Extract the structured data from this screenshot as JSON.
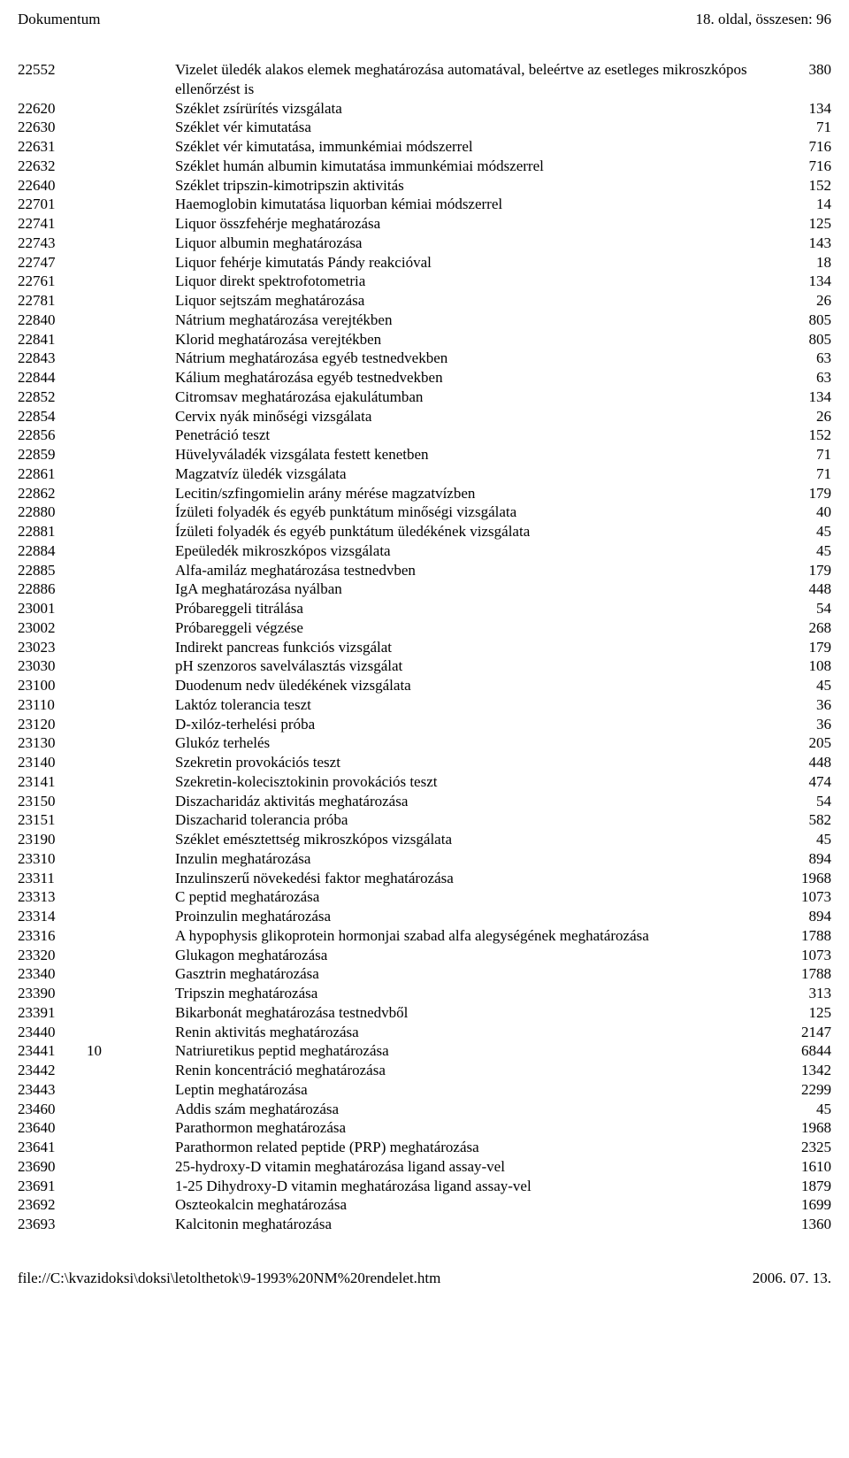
{
  "header": {
    "left": "Dokumentum",
    "right": "18. oldal, összesen: 96"
  },
  "footer": {
    "left": "file://C:\\kvazidoksi\\doksi\\letolthetok\\9-1993%20NM%20rendelet.htm",
    "right": "2006. 07. 13."
  },
  "rows": [
    {
      "code": "22552",
      "mid": "",
      "desc": "Vizelet üledék alakos elemek meghatározása automatával, beleértve az esetleges mikroszkópos ellenőrzést is",
      "val": "380"
    },
    {
      "code": "22620",
      "mid": "",
      "desc": "Széklet zsírürítés vizsgálata",
      "val": "134"
    },
    {
      "code": "22630",
      "mid": "",
      "desc": "Széklet vér kimutatása",
      "val": "71"
    },
    {
      "code": "22631",
      "mid": "",
      "desc": "Széklet vér kimutatása, immunkémiai módszerrel",
      "val": "716"
    },
    {
      "code": "22632",
      "mid": "",
      "desc": "Széklet humán albumin kimutatása immunkémiai módszerrel",
      "val": "716"
    },
    {
      "code": "22640",
      "mid": "",
      "desc": "Széklet tripszin-kimotripszin aktivitás",
      "val": "152"
    },
    {
      "code": "22701",
      "mid": "",
      "desc": "Haemoglobin kimutatása liquorban kémiai módszerrel",
      "val": "14"
    },
    {
      "code": "22741",
      "mid": "",
      "desc": "Liquor összfehérje meghatározása",
      "val": "125"
    },
    {
      "code": "22743",
      "mid": "",
      "desc": "Liquor albumin meghatározása",
      "val": "143"
    },
    {
      "code": "22747",
      "mid": "",
      "desc": "Liquor fehérje kimutatás Pándy reakcióval",
      "val": "18"
    },
    {
      "code": "22761",
      "mid": "",
      "desc": "Liquor direkt spektrofotometria",
      "val": "134"
    },
    {
      "code": "22781",
      "mid": "",
      "desc": "Liquor sejtszám meghatározása",
      "val": "26"
    },
    {
      "code": "22840",
      "mid": "",
      "desc": "Nátrium meghatározása verejtékben",
      "val": "805"
    },
    {
      "code": "22841",
      "mid": "",
      "desc": "Klorid meghatározása verejtékben",
      "val": "805"
    },
    {
      "code": "22843",
      "mid": "",
      "desc": "Nátrium meghatározása egyéb testnedvekben",
      "val": "63"
    },
    {
      "code": "22844",
      "mid": "",
      "desc": "Kálium meghatározása egyéb testnedvekben",
      "val": "63"
    },
    {
      "code": "22852",
      "mid": "",
      "desc": "Citromsav meghatározása ejakulátumban",
      "val": "134"
    },
    {
      "code": "22854",
      "mid": "",
      "desc": "Cervix nyák minőségi vizsgálata",
      "val": "26"
    },
    {
      "code": "22856",
      "mid": "",
      "desc": "Penetráció teszt",
      "val": "152"
    },
    {
      "code": "22859",
      "mid": "",
      "desc": "Hüvelyváladék vizsgálata festett kenetben",
      "val": "71"
    },
    {
      "code": "22861",
      "mid": "",
      "desc": "Magzatvíz üledék vizsgálata",
      "val": "71"
    },
    {
      "code": "22862",
      "mid": "",
      "desc": "Lecitin/szfingomielin arány mérése magzatvízben",
      "val": "179"
    },
    {
      "code": "22880",
      "mid": "",
      "desc": "Ízületi folyadék és egyéb punktátum minőségi vizsgálata",
      "val": "40"
    },
    {
      "code": "22881",
      "mid": "",
      "desc": "Ízületi folyadék és egyéb punktátum üledékének vizsgálata",
      "val": "45"
    },
    {
      "code": "22884",
      "mid": "",
      "desc": "Epeüledék mikroszkópos vizsgálata",
      "val": "45"
    },
    {
      "code": "22885",
      "mid": "",
      "desc": "Alfa-amiláz meghatározása testnedvben",
      "val": "179"
    },
    {
      "code": "22886",
      "mid": "",
      "desc": "IgA meghatározása nyálban",
      "val": "448"
    },
    {
      "code": "23001",
      "mid": "",
      "desc": "Próbareggeli titrálása",
      "val": "54"
    },
    {
      "code": "23002",
      "mid": "",
      "desc": "Próbareggeli végzése",
      "val": "268"
    },
    {
      "code": "23023",
      "mid": "",
      "desc": "Indirekt pancreas funkciós vizsgálat",
      "val": "179"
    },
    {
      "code": "23030",
      "mid": "",
      "desc": "pH szenzoros savelválasztás vizsgálat",
      "val": "108"
    },
    {
      "code": "23100",
      "mid": "",
      "desc": "Duodenum nedv üledékének vizsgálata",
      "val": "45"
    },
    {
      "code": "23110",
      "mid": "",
      "desc": "Laktóz tolerancia teszt",
      "val": "36"
    },
    {
      "code": "23120",
      "mid": "",
      "desc": "D-xilóz-terhelési próba",
      "val": "36"
    },
    {
      "code": "23130",
      "mid": "",
      "desc": "Glukóz terhelés",
      "val": "205"
    },
    {
      "code": "23140",
      "mid": "",
      "desc": "Szekretin provokációs teszt",
      "val": "448"
    },
    {
      "code": "23141",
      "mid": "",
      "desc": "Szekretin-kolecisztokinin provokációs teszt",
      "val": "474"
    },
    {
      "code": "23150",
      "mid": "",
      "desc": "Diszacharidáz aktivitás meghatározása",
      "val": "54"
    },
    {
      "code": "23151",
      "mid": "",
      "desc": "Diszacharid tolerancia próba",
      "val": "582"
    },
    {
      "code": "23190",
      "mid": "",
      "desc": "Széklet emésztettség mikroszkópos vizsgálata",
      "val": "45"
    },
    {
      "code": "23310",
      "mid": "",
      "desc": "Inzulin meghatározása",
      "val": "894"
    },
    {
      "code": "23311",
      "mid": "",
      "desc": "Inzulinszerű növekedési faktor meghatározása",
      "val": "1968"
    },
    {
      "code": "23313",
      "mid": "",
      "desc": "C peptid meghatározása",
      "val": "1073"
    },
    {
      "code": "23314",
      "mid": "",
      "desc": "Proinzulin meghatározása",
      "val": "894"
    },
    {
      "code": "23316",
      "mid": "",
      "desc": "A hypophysis glikoprotein hormonjai szabad alfa alegységének meghatározása",
      "val": "1788"
    },
    {
      "code": "23320",
      "mid": "",
      "desc": "Glukagon meghatározása",
      "val": "1073"
    },
    {
      "code": "23340",
      "mid": "",
      "desc": "Gasztrin meghatározása",
      "val": "1788"
    },
    {
      "code": "23390",
      "mid": "",
      "desc": "Tripszin meghatározása",
      "val": "313"
    },
    {
      "code": "23391",
      "mid": "",
      "desc": "Bikarbonát meghatározása testnedvből",
      "val": "125"
    },
    {
      "code": "23440",
      "mid": "",
      "desc": "Renin aktivitás meghatározása",
      "val": "2147"
    },
    {
      "code": "23441",
      "mid": "10",
      "desc": "Natriuretikus peptid meghatározása",
      "val": "6844"
    },
    {
      "code": "23442",
      "mid": "",
      "desc": "Renin koncentráció meghatározása",
      "val": "1342"
    },
    {
      "code": "23443",
      "mid": "",
      "desc": "Leptin meghatározása",
      "val": "2299"
    },
    {
      "code": "23460",
      "mid": "",
      "desc": "Addis szám meghatározása",
      "val": "45"
    },
    {
      "code": "23640",
      "mid": "",
      "desc": "Parathormon meghatározása",
      "val": "1968"
    },
    {
      "code": "23641",
      "mid": "",
      "desc": "Parathormon related peptide (PRP) meghatározása",
      "val": "2325"
    },
    {
      "code": "23690",
      "mid": "",
      "desc": "25-hydroxy-D vitamin meghatározása ligand assay-vel",
      "val": "1610"
    },
    {
      "code": "23691",
      "mid": "",
      "desc": "1-25 Dihydroxy-D vitamin meghatározása ligand assay-vel",
      "val": "1879"
    },
    {
      "code": "23692",
      "mid": "",
      "desc": "Oszteokalcin meghatározása",
      "val": "1699"
    },
    {
      "code": "23693",
      "mid": "",
      "desc": "Kalcitonin meghatározása",
      "val": "1360"
    }
  ]
}
